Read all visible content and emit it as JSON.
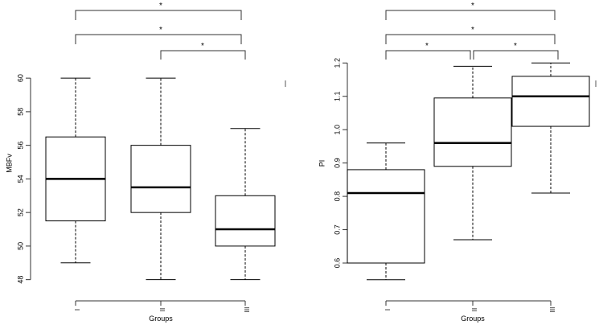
{
  "chart_data": [
    {
      "type": "box",
      "title": "",
      "xlabel": "Groups",
      "ylabel": "MBFv",
      "ylim": [
        47.6,
        61.3
      ],
      "yticks": [
        48,
        50,
        52,
        54,
        56,
        58,
        60
      ],
      "ytick_labels": [
        "48",
        "50",
        "52",
        "54",
        "56",
        "58",
        "60"
      ],
      "categories": [
        "I",
        "II",
        "III"
      ],
      "boxes": [
        {
          "group": "I",
          "min": 49,
          "q1": 51.5,
          "median": 54,
          "q3": 56.5,
          "max": 60
        },
        {
          "group": "II",
          "min": 48,
          "q1": 52,
          "median": 53.5,
          "q3": 56,
          "max": 60
        },
        {
          "group": "III",
          "min": 48,
          "q1": 50,
          "median": 51,
          "q3": 53,
          "max": 57
        }
      ],
      "significance": [
        {
          "from": "I",
          "to": "III",
          "label": "*"
        },
        {
          "from": "I",
          "to": "III",
          "label": "*"
        },
        {
          "from": "II",
          "to": "III",
          "label": "*"
        }
      ]
    },
    {
      "type": "box",
      "title": "",
      "xlabel": "Groups",
      "ylabel": "PI",
      "ylim": [
        0.53,
        1.22
      ],
      "yticks": [
        0.6,
        0.7,
        0.8,
        0.9,
        1.0,
        1.1,
        1.2
      ],
      "ytick_labels": [
        "0.6",
        "0.7",
        "0.8",
        "0.9",
        "1.0",
        "1.1",
        "1.2"
      ],
      "categories": [
        "I",
        "II",
        "III"
      ],
      "boxes": [
        {
          "group": "I",
          "min": 0.55,
          "q1": 0.6,
          "median": 0.81,
          "q3": 0.88,
          "max": 0.96
        },
        {
          "group": "II",
          "min": 0.67,
          "q1": 0.89,
          "median": 0.96,
          "q3": 1.095,
          "max": 1.19
        },
        {
          "group": "III",
          "min": 0.81,
          "q1": 1.01,
          "median": 1.1,
          "q3": 1.16,
          "max": 1.2
        }
      ],
      "significance": [
        {
          "from": "I",
          "to": "III",
          "label": "*"
        },
        {
          "from": "I",
          "to": "III",
          "label": "*"
        },
        {
          "from": "I",
          "to": "II",
          "label": "*"
        },
        {
          "from": "II",
          "to": "III",
          "label": "*"
        }
      ]
    }
  ]
}
